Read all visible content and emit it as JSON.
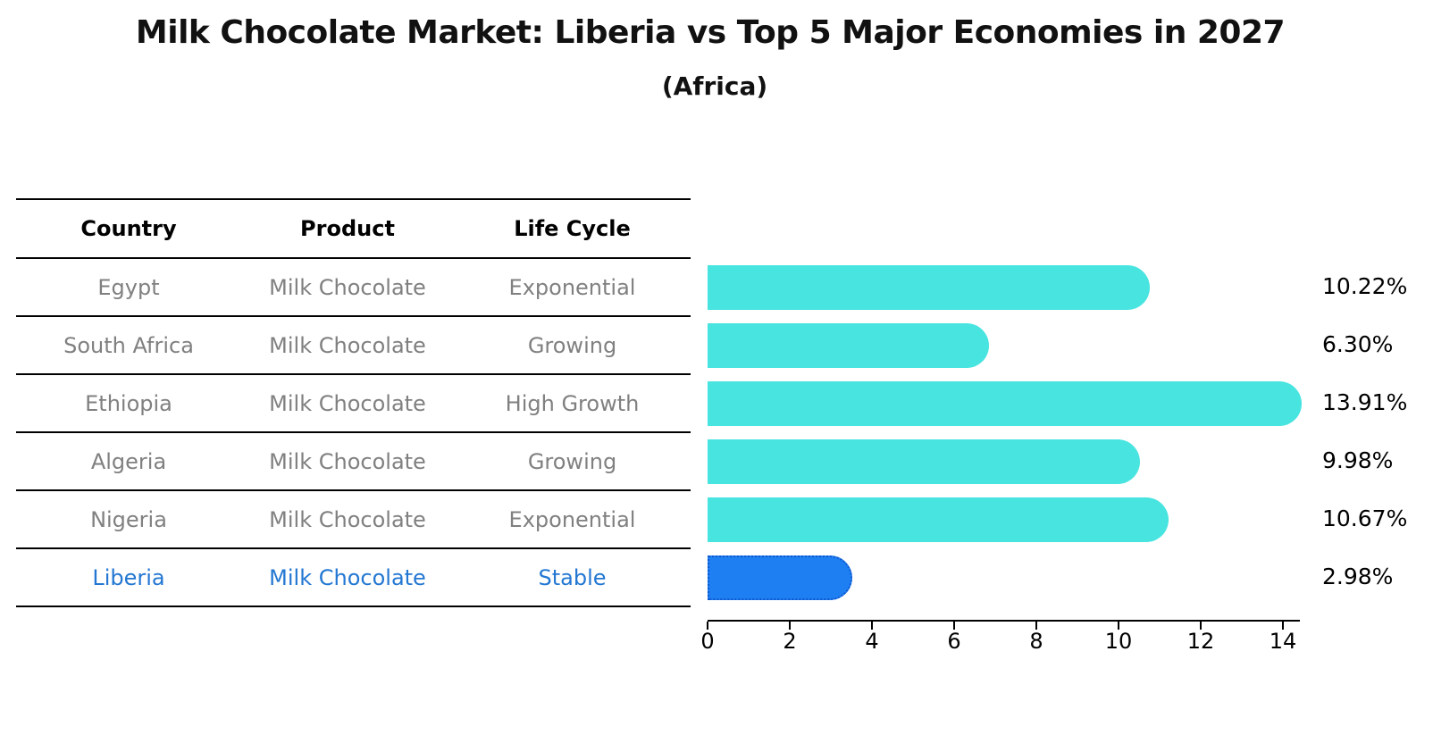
{
  "title": "Milk Chocolate Market: Liberia vs Top 5 Major Economies in 2027",
  "subtitle": "(Africa)",
  "table": {
    "columns": [
      "Country",
      "Product",
      "Life Cycle"
    ]
  },
  "chart_data": {
    "type": "bar",
    "orientation": "horizontal",
    "title": "Milk Chocolate Market: Liberia vs Top 5 Major Economies in 2027",
    "subtitle": "(Africa)",
    "xlabel": "",
    "ylabel": "",
    "xlim": [
      0,
      14.4
    ],
    "x_ticks": [
      0,
      2,
      4,
      6,
      8,
      10,
      12,
      14
    ],
    "grid": false,
    "legend": false,
    "categories": [
      "Egypt",
      "South Africa",
      "Ethiopia",
      "Algeria",
      "Nigeria",
      "Liberia"
    ],
    "rows": [
      {
        "country": "Egypt",
        "product": "Milk Chocolate",
        "life_cycle": "Exponential",
        "value": 10.22,
        "value_label": "10.22%",
        "highlight": false
      },
      {
        "country": "South Africa",
        "product": "Milk Chocolate",
        "life_cycle": "Growing",
        "value": 6.3,
        "value_label": "6.30%",
        "highlight": false
      },
      {
        "country": "Ethiopia",
        "product": "Milk Chocolate",
        "life_cycle": "High Growth",
        "value": 13.91,
        "value_label": "13.91%",
        "highlight": false
      },
      {
        "country": "Algeria",
        "product": "Milk Chocolate",
        "life_cycle": "Growing",
        "value": 9.98,
        "value_label": "9.98%",
        "highlight": false
      },
      {
        "country": "Nigeria",
        "product": "Milk Chocolate",
        "life_cycle": "Exponential",
        "value": 10.67,
        "value_label": "10.67%",
        "highlight": false
      },
      {
        "country": "Liberia",
        "product": "Milk Chocolate",
        "life_cycle": "Stable",
        "value": 2.98,
        "value_label": "2.98%",
        "highlight": true
      }
    ],
    "colors": {
      "bar": "#47e4e0",
      "highlight_bar": "#1e7ff2",
      "highlight_edge": "#1057cf",
      "row_text": "#808080",
      "highlight_text": "#2377d2",
      "axis": "#000000",
      "value_text": "#000000"
    }
  }
}
